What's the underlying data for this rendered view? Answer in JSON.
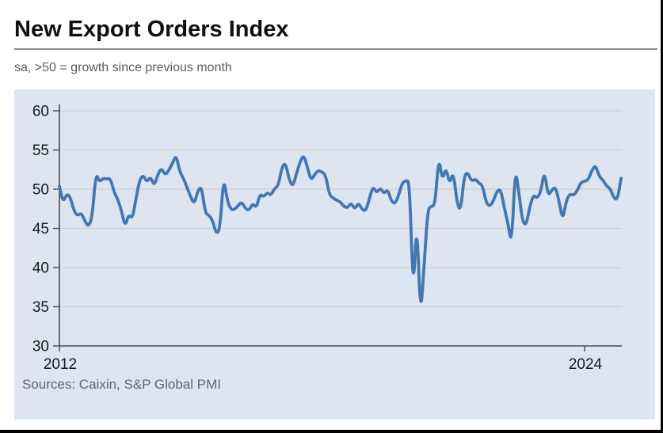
{
  "header": {
    "title": "New Export Orders Index",
    "subtitle": "sa, >50 = growth since previous month"
  },
  "footer": {
    "source": "Sources: Caixin, S&P Global PMI"
  },
  "colors": {
    "line": "#4377b1",
    "panel_bg": "#dde5f1",
    "grid": "#d5cec2",
    "axis": "#4a4a4a",
    "tick_label": "#191919"
  },
  "chart_data": {
    "type": "line",
    "title": "New Export Orders Index",
    "subtitle": "sa, >50 = growth since previous month",
    "source": "Sources: Caixin, S&P Global PMI",
    "frequency": "monthly",
    "x_start": "2012-01",
    "x_end": "2024-11",
    "ylim": [
      30,
      60
    ],
    "yticks": [
      30,
      35,
      40,
      45,
      50,
      55,
      60
    ],
    "xticks": [
      "2012",
      "2024"
    ],
    "xtick_month_indices": [
      0,
      144
    ],
    "grid": true,
    "legend": false,
    "reference_level_note": "values above 50 indicate growth since previous month",
    "series": [
      {
        "name": "New Export Orders Index",
        "values": [
          50.4,
          48.3,
          49.4,
          49.0,
          47.2,
          46.6,
          47.0,
          45.9,
          45.2,
          46.5,
          52.1,
          50.9,
          51.4,
          51.3,
          51.4,
          49.6,
          48.7,
          47.3,
          45.2,
          46.8,
          46.2,
          48.8,
          51.2,
          51.8,
          50.9,
          51.6,
          50.4,
          51.9,
          52.7,
          51.8,
          52.4,
          53.3,
          54.4,
          52.2,
          51.4,
          50.2,
          49.0,
          48.1,
          49.9,
          50.3,
          46.9,
          46.7,
          46.0,
          44.3,
          44.8,
          51.6,
          48.6,
          47.4,
          47.4,
          47.9,
          48.4,
          47.5,
          47.3,
          48.2,
          47.6,
          49.4,
          49.0,
          49.6,
          49.2,
          50.1,
          50.4,
          52.8,
          53.4,
          51.2,
          50.3,
          52.0,
          53.5,
          54.4,
          52.8,
          51.1,
          51.9,
          52.4,
          52.2,
          51.8,
          49.3,
          48.9,
          48.6,
          48.4,
          47.8,
          47.6,
          48.3,
          47.4,
          48.3,
          47.4,
          47.2,
          48.8,
          50.4,
          49.5,
          50.2,
          49.4,
          50.0,
          48.5,
          48.1,
          49.2,
          50.8,
          51.1,
          51.0,
          36.3,
          46.5,
          33.5,
          40.1,
          47.5,
          47.8,
          48.0,
          54.2,
          51.1,
          52.8,
          50.6,
          52.3,
          48.3,
          47.1,
          51.8,
          52.1,
          51.0,
          51.3,
          50.8,
          50.5,
          48.3,
          47.8,
          48.5,
          49.8,
          50.0,
          47.6,
          45.6,
          42.8,
          52.8,
          49.5,
          45.8,
          45.4,
          47.8,
          49.3,
          48.8,
          49.7,
          52.4,
          49.1,
          49.9,
          50.3,
          48.5,
          46.0,
          48.6,
          49.4,
          49.2,
          49.8,
          50.9,
          51.0,
          51.2,
          52.4,
          53.1,
          51.6,
          51.2,
          50.4,
          50.1,
          48.9,
          48.6,
          51.4
        ]
      }
    ]
  }
}
